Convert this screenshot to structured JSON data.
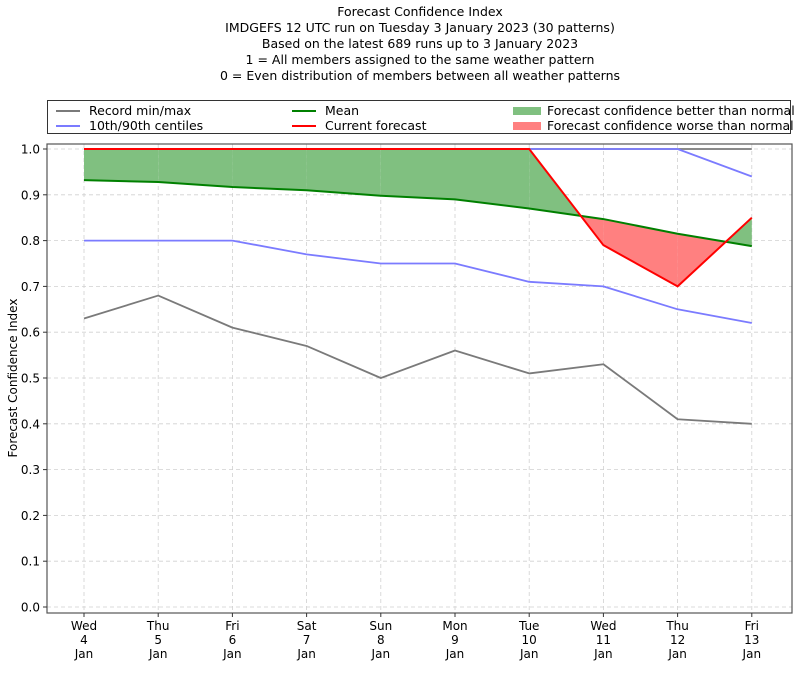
{
  "chart_data": {
    "type": "line",
    "title": "Forecast Confidence Index",
    "subtitle_lines": [
      "IMDGEFS 12 UTC run on Tuesday 3 January 2023 (30 patterns)",
      "Based on the latest 689 runs up to 3 January 2023",
      "1 = All members assigned to the same weather pattern",
      "0 = Even distribution of members between all weather patterns"
    ],
    "xlabel": "",
    "ylabel": "Forecast Confidence Index",
    "ylim": [
      0.0,
      1.0
    ],
    "yticks": [
      "0.0",
      "0.1",
      "0.2",
      "0.3",
      "0.4",
      "0.5",
      "0.6",
      "0.7",
      "0.8",
      "0.9",
      "1.0"
    ],
    "grid": true,
    "legend_placement": "top",
    "categories": [
      {
        "day": "Wed",
        "date": "4",
        "month": "Jan"
      },
      {
        "day": "Thu",
        "date": "5",
        "month": "Jan"
      },
      {
        "day": "Fri",
        "date": "6",
        "month": "Jan"
      },
      {
        "day": "Sat",
        "date": "7",
        "month": "Jan"
      },
      {
        "day": "Sun",
        "date": "8",
        "month": "Jan"
      },
      {
        "day": "Mon",
        "date": "9",
        "month": "Jan"
      },
      {
        "day": "Tue",
        "date": "10",
        "month": "Jan"
      },
      {
        "day": "Wed",
        "date": "11",
        "month": "Jan"
      },
      {
        "day": "Thu",
        "date": "12",
        "month": "Jan"
      },
      {
        "day": "Fri",
        "date": "13",
        "month": "Jan"
      }
    ],
    "series": [
      {
        "name": "Record min",
        "legend_label": "Record min/max",
        "color": "#7a7a7a",
        "values": [
          0.63,
          0.68,
          0.61,
          0.57,
          0.5,
          0.56,
          0.51,
          0.53,
          0.41,
          0.4
        ]
      },
      {
        "name": "Record max",
        "color": "#7a7a7a",
        "values": [
          1.0,
          1.0,
          1.0,
          1.0,
          1.0,
          1.0,
          1.0,
          1.0,
          1.0,
          1.0
        ]
      },
      {
        "name": "10th centile",
        "legend_label": "10th/90th centiles",
        "color": "#7b7bff",
        "values": [
          0.8,
          0.8,
          0.8,
          0.77,
          0.75,
          0.75,
          0.71,
          0.7,
          0.65,
          0.62
        ]
      },
      {
        "name": "90th centile",
        "color": "#7b7bff",
        "values": [
          1.0,
          1.0,
          1.0,
          1.0,
          1.0,
          1.0,
          1.0,
          1.0,
          1.0,
          0.94
        ]
      },
      {
        "name": "Mean",
        "legend_label": "Mean",
        "color": "#008000",
        "values": [
          0.932,
          0.928,
          0.917,
          0.91,
          0.898,
          0.89,
          0.87,
          0.847,
          0.815,
          0.788
        ]
      },
      {
        "name": "Current forecast",
        "legend_label": "Current forecast",
        "color": "#ff0000",
        "values": [
          1.0,
          1.0,
          1.0,
          1.0,
          1.0,
          1.0,
          1.0,
          0.79,
          0.7,
          0.85
        ]
      }
    ],
    "fills": [
      {
        "label": "Forecast confidence better than normal",
        "color": "#80c080"
      },
      {
        "label": "Forecast confidence worse than normal",
        "color": "#ff8080"
      }
    ]
  }
}
